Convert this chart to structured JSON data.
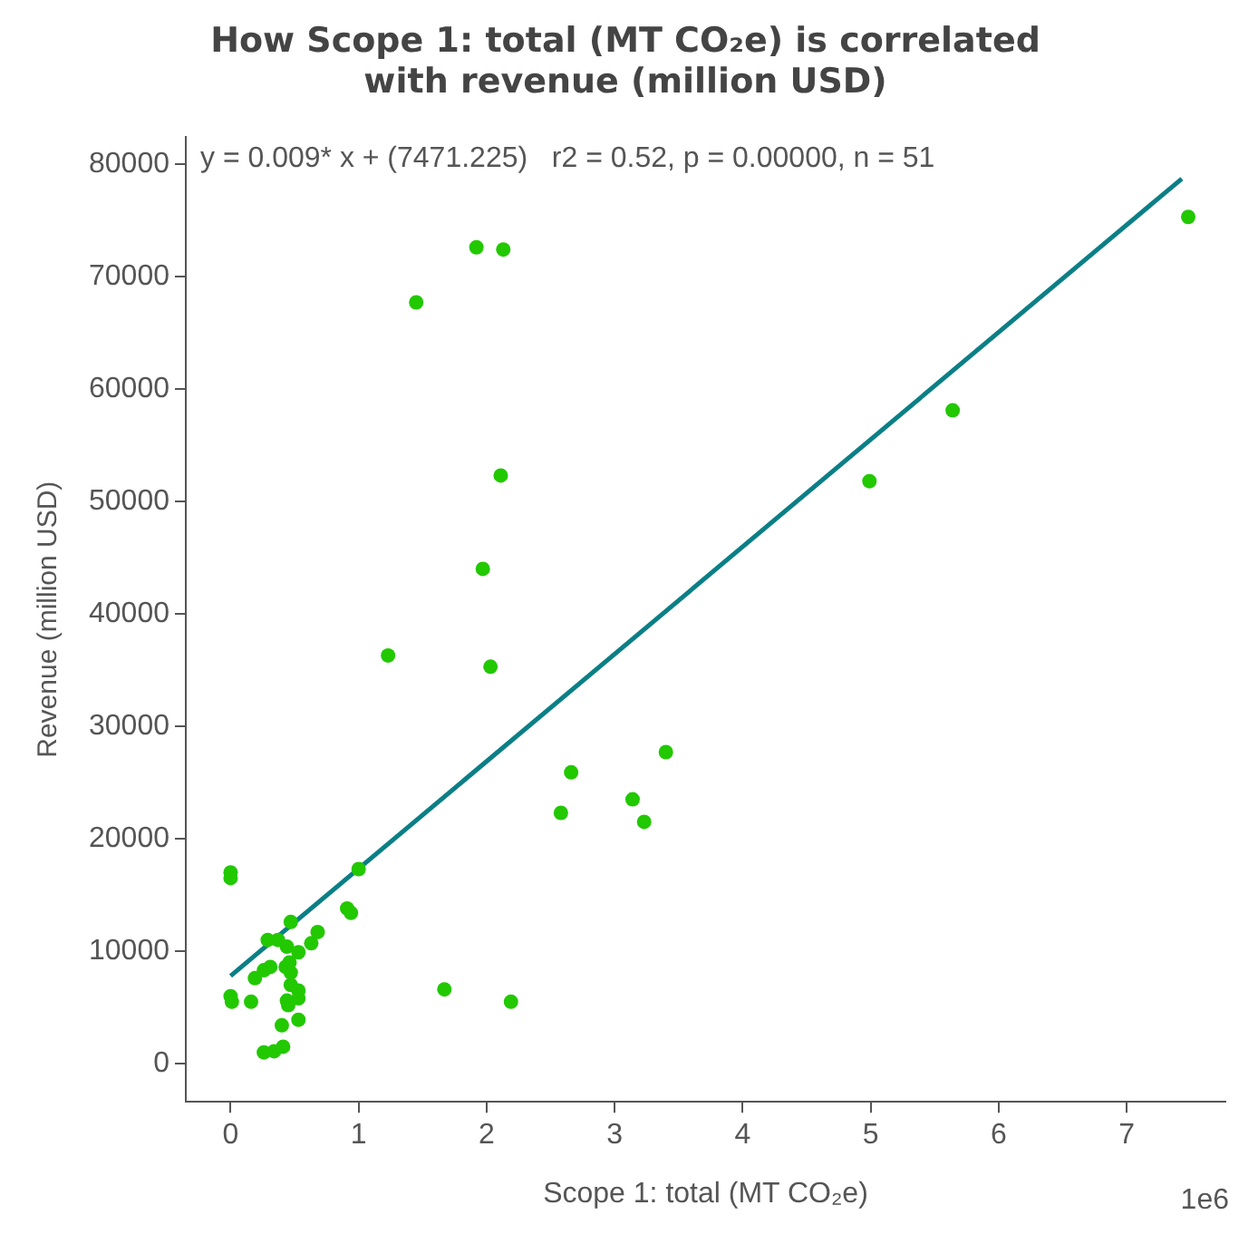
{
  "chart_data": {
    "type": "scatter",
    "title": "How Scope 1: total (MT CO₂e) is correlated with revenue (million USD)",
    "xlabel": "Scope 1: total (MT CO₂e)",
    "ylabel": "Revenue (million USD)",
    "annotations": [
      "y = 0.009* x + (7471.225)   r2 = 0.52, p = 0.00000, n = 51",
      "1e6"
    ],
    "xlim": [
      -0.35,
      7.77
    ],
    "ylim": [
      -3400,
      82400
    ],
    "xticks": [
      0,
      1,
      2,
      3,
      4,
      5,
      6,
      7
    ],
    "yticks": [
      0,
      10000,
      20000,
      30000,
      40000,
      50000,
      60000,
      70000,
      80000
    ],
    "grid": false,
    "marker": "circle",
    "series": [
      {
        "color": "#22c800",
        "x": [
          0,
          0,
          0,
          0.01,
          0.16,
          0.26,
          0.34,
          0.41,
          0.4,
          0.45,
          0.44,
          0.53,
          0.53,
          0.47,
          0.47,
          0.53,
          0.43,
          0.46,
          0.29,
          0.37,
          0.47,
          0.68,
          0.63,
          0.44,
          0.53,
          0.19,
          0.26,
          0.31,
          1.0,
          0.91,
          0.94,
          1.67,
          2.19,
          1.23,
          2.03,
          1.97,
          2.11,
          1.92,
          2.13,
          1.45,
          2.58,
          2.66,
          3.14,
          3.23,
          3.4,
          4.99,
          5.64,
          7.48
        ],
        "values": [
          17000,
          16500,
          6000,
          5500,
          5500,
          1000,
          1100,
          1500,
          3400,
          5200,
          5600,
          5800,
          3900,
          7000,
          8100,
          6500,
          8600,
          9000,
          11000,
          11000,
          12600,
          11700,
          10700,
          10400,
          9900,
          7600,
          8300,
          8600,
          17300,
          13800,
          13400,
          6600,
          5500,
          36300,
          35300,
          44000,
          52300,
          72600,
          72400,
          67700,
          22300,
          25900,
          23500,
          21500,
          27700,
          51800,
          58100,
          75300
        ]
      },
      {
        "type": "line",
        "color": "#0b7f86",
        "marker": "none",
        "x": [
          0,
          7.43
        ],
        "values": [
          7800,
          78700
        ]
      }
    ]
  }
}
